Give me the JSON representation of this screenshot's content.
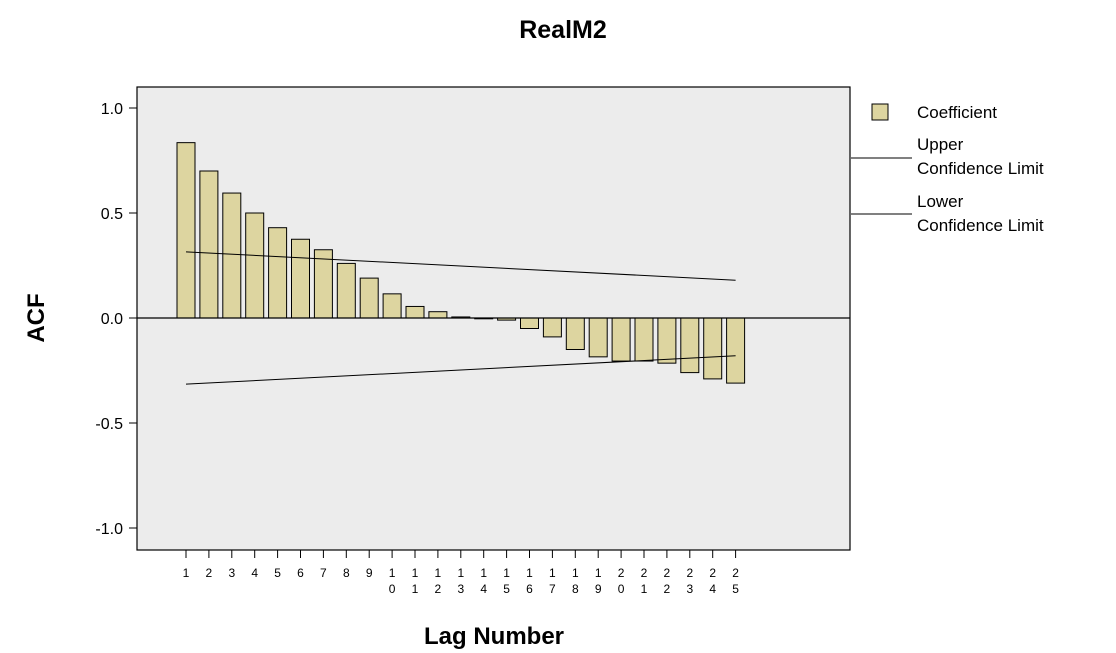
{
  "chart_data": {
    "type": "bar",
    "title": "RealM2",
    "xlabel": "Lag Number",
    "ylabel": "ACF",
    "ylim": [
      -1.0,
      1.0
    ],
    "yticks": [
      "1.0",
      "0.5",
      "0.0",
      "-0.5",
      "-1.0"
    ],
    "ytick_values": [
      1.0,
      0.5,
      0.0,
      -0.5,
      -1.0
    ],
    "categories": [
      "1",
      "2",
      "3",
      "4",
      "5",
      "6",
      "7",
      "8",
      "9",
      "10",
      "11",
      "12",
      "13",
      "14",
      "15",
      "16",
      "17",
      "18",
      "19",
      "20",
      "21",
      "22",
      "23",
      "24",
      "25"
    ],
    "tick_label_lines": [
      [
        "1"
      ],
      [
        "2"
      ],
      [
        "3"
      ],
      [
        "4"
      ],
      [
        "5"
      ],
      [
        "6"
      ],
      [
        "7"
      ],
      [
        "8"
      ],
      [
        "9"
      ],
      [
        "1",
        "0"
      ],
      [
        "1",
        "1"
      ],
      [
        "1",
        "2"
      ],
      [
        "1",
        "3"
      ],
      [
        "1",
        "4"
      ],
      [
        "1",
        "5"
      ],
      [
        "1",
        "6"
      ],
      [
        "1",
        "7"
      ],
      [
        "1",
        "8"
      ],
      [
        "1",
        "9"
      ],
      [
        "2",
        "0"
      ],
      [
        "2",
        "1"
      ],
      [
        "2",
        "2"
      ],
      [
        "2",
        "3"
      ],
      [
        "2",
        "4"
      ],
      [
        "2",
        "5"
      ]
    ],
    "series": [
      {
        "name": "Coefficient",
        "values": [
          0.835,
          0.7,
          0.595,
          0.5,
          0.43,
          0.375,
          0.325,
          0.26,
          0.19,
          0.115,
          0.055,
          0.03,
          0.005,
          0.0,
          -0.01,
          -0.05,
          -0.09,
          -0.15,
          -0.185,
          -0.205,
          -0.205,
          -0.215,
          -0.26,
          -0.29,
          -0.31
        ],
        "color": "#ddd5a0"
      }
    ],
    "confidence_limits": {
      "upper": {
        "name": "Upper Confidence Limit",
        "start": 0.315,
        "end": 0.18
      },
      "lower": {
        "name": "Lower Confidence Limit",
        "start": -0.315,
        "end": -0.18
      }
    },
    "legend": {
      "placement": "right",
      "coefficient_label": "Coefficient",
      "upper_lines": [
        "Upper",
        "Confidence Limit"
      ],
      "lower_lines": [
        "Lower",
        "Confidence Limit"
      ]
    },
    "plot_background": "#ececec",
    "grid": false
  }
}
